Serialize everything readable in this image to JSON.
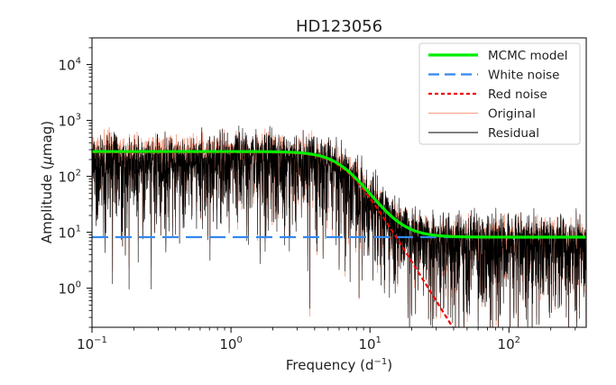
{
  "chart_data": {
    "type": "line",
    "title": "HD123056",
    "xlabel": "Frequency (d",
    "xlabel_sup": "−1",
    "xlabel_close": ")",
    "ylabel_pre": "Amplitude (",
    "ylabel_mu": "μ",
    "ylabel_post": "mag)",
    "xscale": "log",
    "yscale": "log",
    "xlim": [
      0.1,
      360
    ],
    "ylim": [
      0.2,
      30000
    ],
    "x_ticks": [
      {
        "base": "10",
        "exp": "−1",
        "value": 0.1
      },
      {
        "base": "10",
        "exp": "0",
        "value": 1
      },
      {
        "base": "10",
        "exp": "1",
        "value": 10
      },
      {
        "base": "10",
        "exp": "2",
        "value": 100
      }
    ],
    "y_ticks": [
      {
        "base": "10",
        "exp": "0",
        "value": 1
      },
      {
        "base": "10",
        "exp": "1",
        "value": 10
      },
      {
        "base": "10",
        "exp": "2",
        "value": 100
      },
      {
        "base": "10",
        "exp": "3",
        "value": 1000
      },
      {
        "base": "10",
        "exp": "4",
        "value": 10000
      }
    ],
    "series": [
      {
        "name": "MCMC model",
        "color": "#00ee00",
        "style": "solid",
        "model": {
          "white": 8.2,
          "red_amp": 270,
          "char_freq": 6.5,
          "slope": 4.0
        }
      },
      {
        "name": "White noise",
        "color": "#3388ee",
        "style": "dashed",
        "value": 8.2
      },
      {
        "name": "Red noise",
        "color": "#ee0000",
        "style": "dotted",
        "model": {
          "red_amp": 270,
          "char_freq": 6.5,
          "slope": 4.0
        }
      },
      {
        "name": "Original",
        "color": "#f59a80",
        "style": "solid"
      },
      {
        "name": "Residual",
        "color": "#000000",
        "style": "solid"
      }
    ]
  }
}
